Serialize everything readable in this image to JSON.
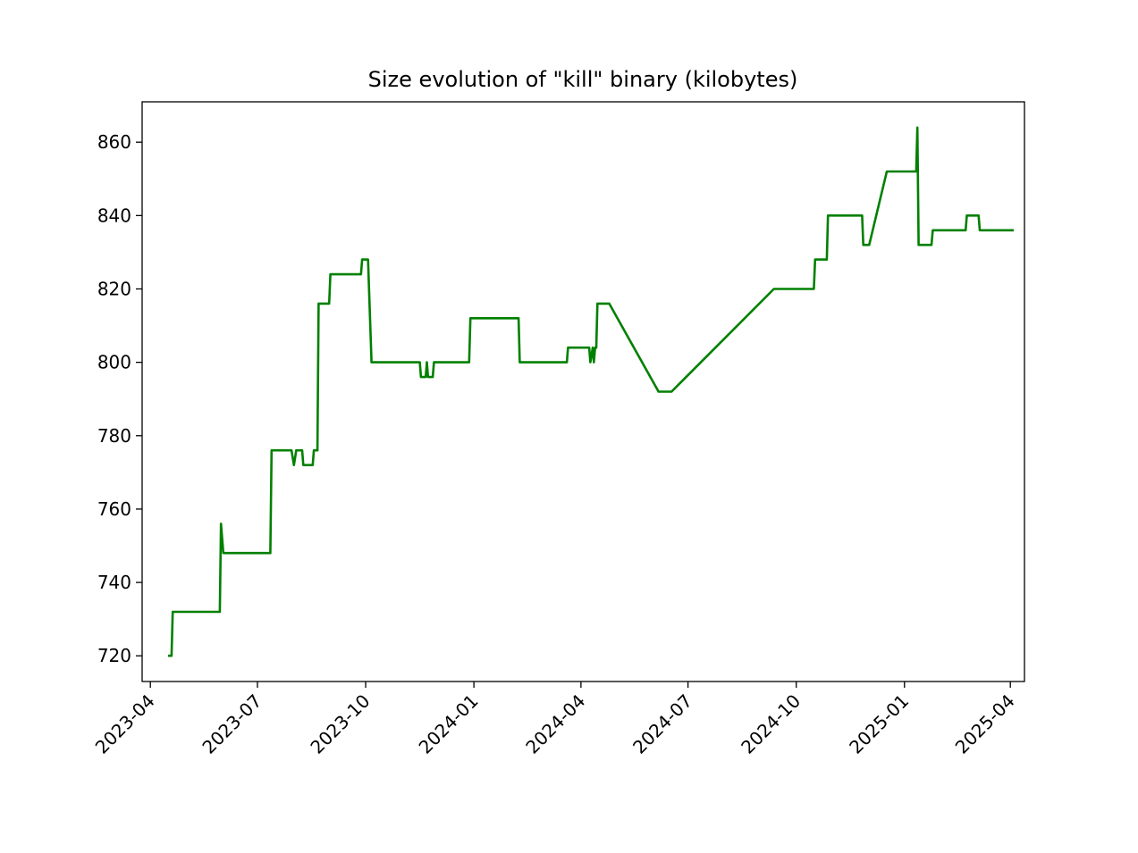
{
  "chart_data": {
    "type": "line",
    "title": "Size evolution of \"kill\" binary (kilobytes)",
    "xlabel": "",
    "ylabel": "",
    "x_axis_type": "date",
    "xlim": [
      "2023-03-25",
      "2025-04-13"
    ],
    "ylim": [
      713,
      871
    ],
    "x_ticks": [
      "2023-04",
      "2023-07",
      "2023-10",
      "2024-01",
      "2024-04",
      "2024-07",
      "2024-10",
      "2025-01",
      "2025-04"
    ],
    "y_ticks": [
      720,
      740,
      760,
      780,
      800,
      820,
      840,
      860
    ],
    "grid": false,
    "legend": "none",
    "series": [
      {
        "color": "#008000",
        "points": [
          [
            "2023-04-17",
            720
          ],
          [
            "2023-04-19",
            720
          ],
          [
            "2023-04-20",
            732
          ],
          [
            "2023-05-30",
            732
          ],
          [
            "2023-05-31",
            756
          ],
          [
            "2023-06-02",
            748
          ],
          [
            "2023-07-12",
            748
          ],
          [
            "2023-07-13",
            776
          ],
          [
            "2023-07-30",
            776
          ],
          [
            "2023-08-01",
            772
          ],
          [
            "2023-08-03",
            776
          ],
          [
            "2023-08-08",
            776
          ],
          [
            "2023-08-09",
            772
          ],
          [
            "2023-08-17",
            772
          ],
          [
            "2023-08-18",
            776
          ],
          [
            "2023-08-21",
            776
          ],
          [
            "2023-08-22",
            816
          ],
          [
            "2023-08-31",
            816
          ],
          [
            "2023-09-01",
            824
          ],
          [
            "2023-09-27",
            824
          ],
          [
            "2023-09-28",
            828
          ],
          [
            "2023-10-03",
            828
          ],
          [
            "2023-10-06",
            800
          ],
          [
            "2023-11-16",
            800
          ],
          [
            "2023-11-17",
            796
          ],
          [
            "2023-11-21",
            796
          ],
          [
            "2023-11-22",
            800
          ],
          [
            "2023-11-23",
            796
          ],
          [
            "2023-11-27",
            796
          ],
          [
            "2023-11-28",
            800
          ],
          [
            "2023-12-28",
            800
          ],
          [
            "2023-12-29",
            812
          ],
          [
            "2024-02-08",
            812
          ],
          [
            "2024-02-09",
            800
          ],
          [
            "2024-03-20",
            800
          ],
          [
            "2024-03-21",
            804
          ],
          [
            "2024-04-08",
            804
          ],
          [
            "2024-04-09",
            800
          ],
          [
            "2024-04-11",
            804
          ],
          [
            "2024-04-12",
            800
          ],
          [
            "2024-04-13",
            804
          ],
          [
            "2024-04-14",
            804
          ],
          [
            "2024-04-15",
            816
          ],
          [
            "2024-04-25",
            816
          ],
          [
            "2024-06-06",
            792
          ],
          [
            "2024-06-17",
            792
          ],
          [
            "2024-09-12",
            820
          ],
          [
            "2024-10-16",
            820
          ],
          [
            "2024-10-17",
            828
          ],
          [
            "2024-10-27",
            828
          ],
          [
            "2024-10-28",
            840
          ],
          [
            "2024-11-26",
            840
          ],
          [
            "2024-11-27",
            832
          ],
          [
            "2024-12-02",
            832
          ],
          [
            "2024-12-17",
            852
          ],
          [
            "2025-01-11",
            852
          ],
          [
            "2025-01-12",
            864
          ],
          [
            "2025-01-13",
            832
          ],
          [
            "2025-01-24",
            832
          ],
          [
            "2025-01-25",
            836
          ],
          [
            "2025-02-22",
            836
          ],
          [
            "2025-02-23",
            840
          ],
          [
            "2025-03-05",
            840
          ],
          [
            "2025-03-06",
            836
          ],
          [
            "2025-04-03",
            836
          ]
        ]
      }
    ]
  }
}
